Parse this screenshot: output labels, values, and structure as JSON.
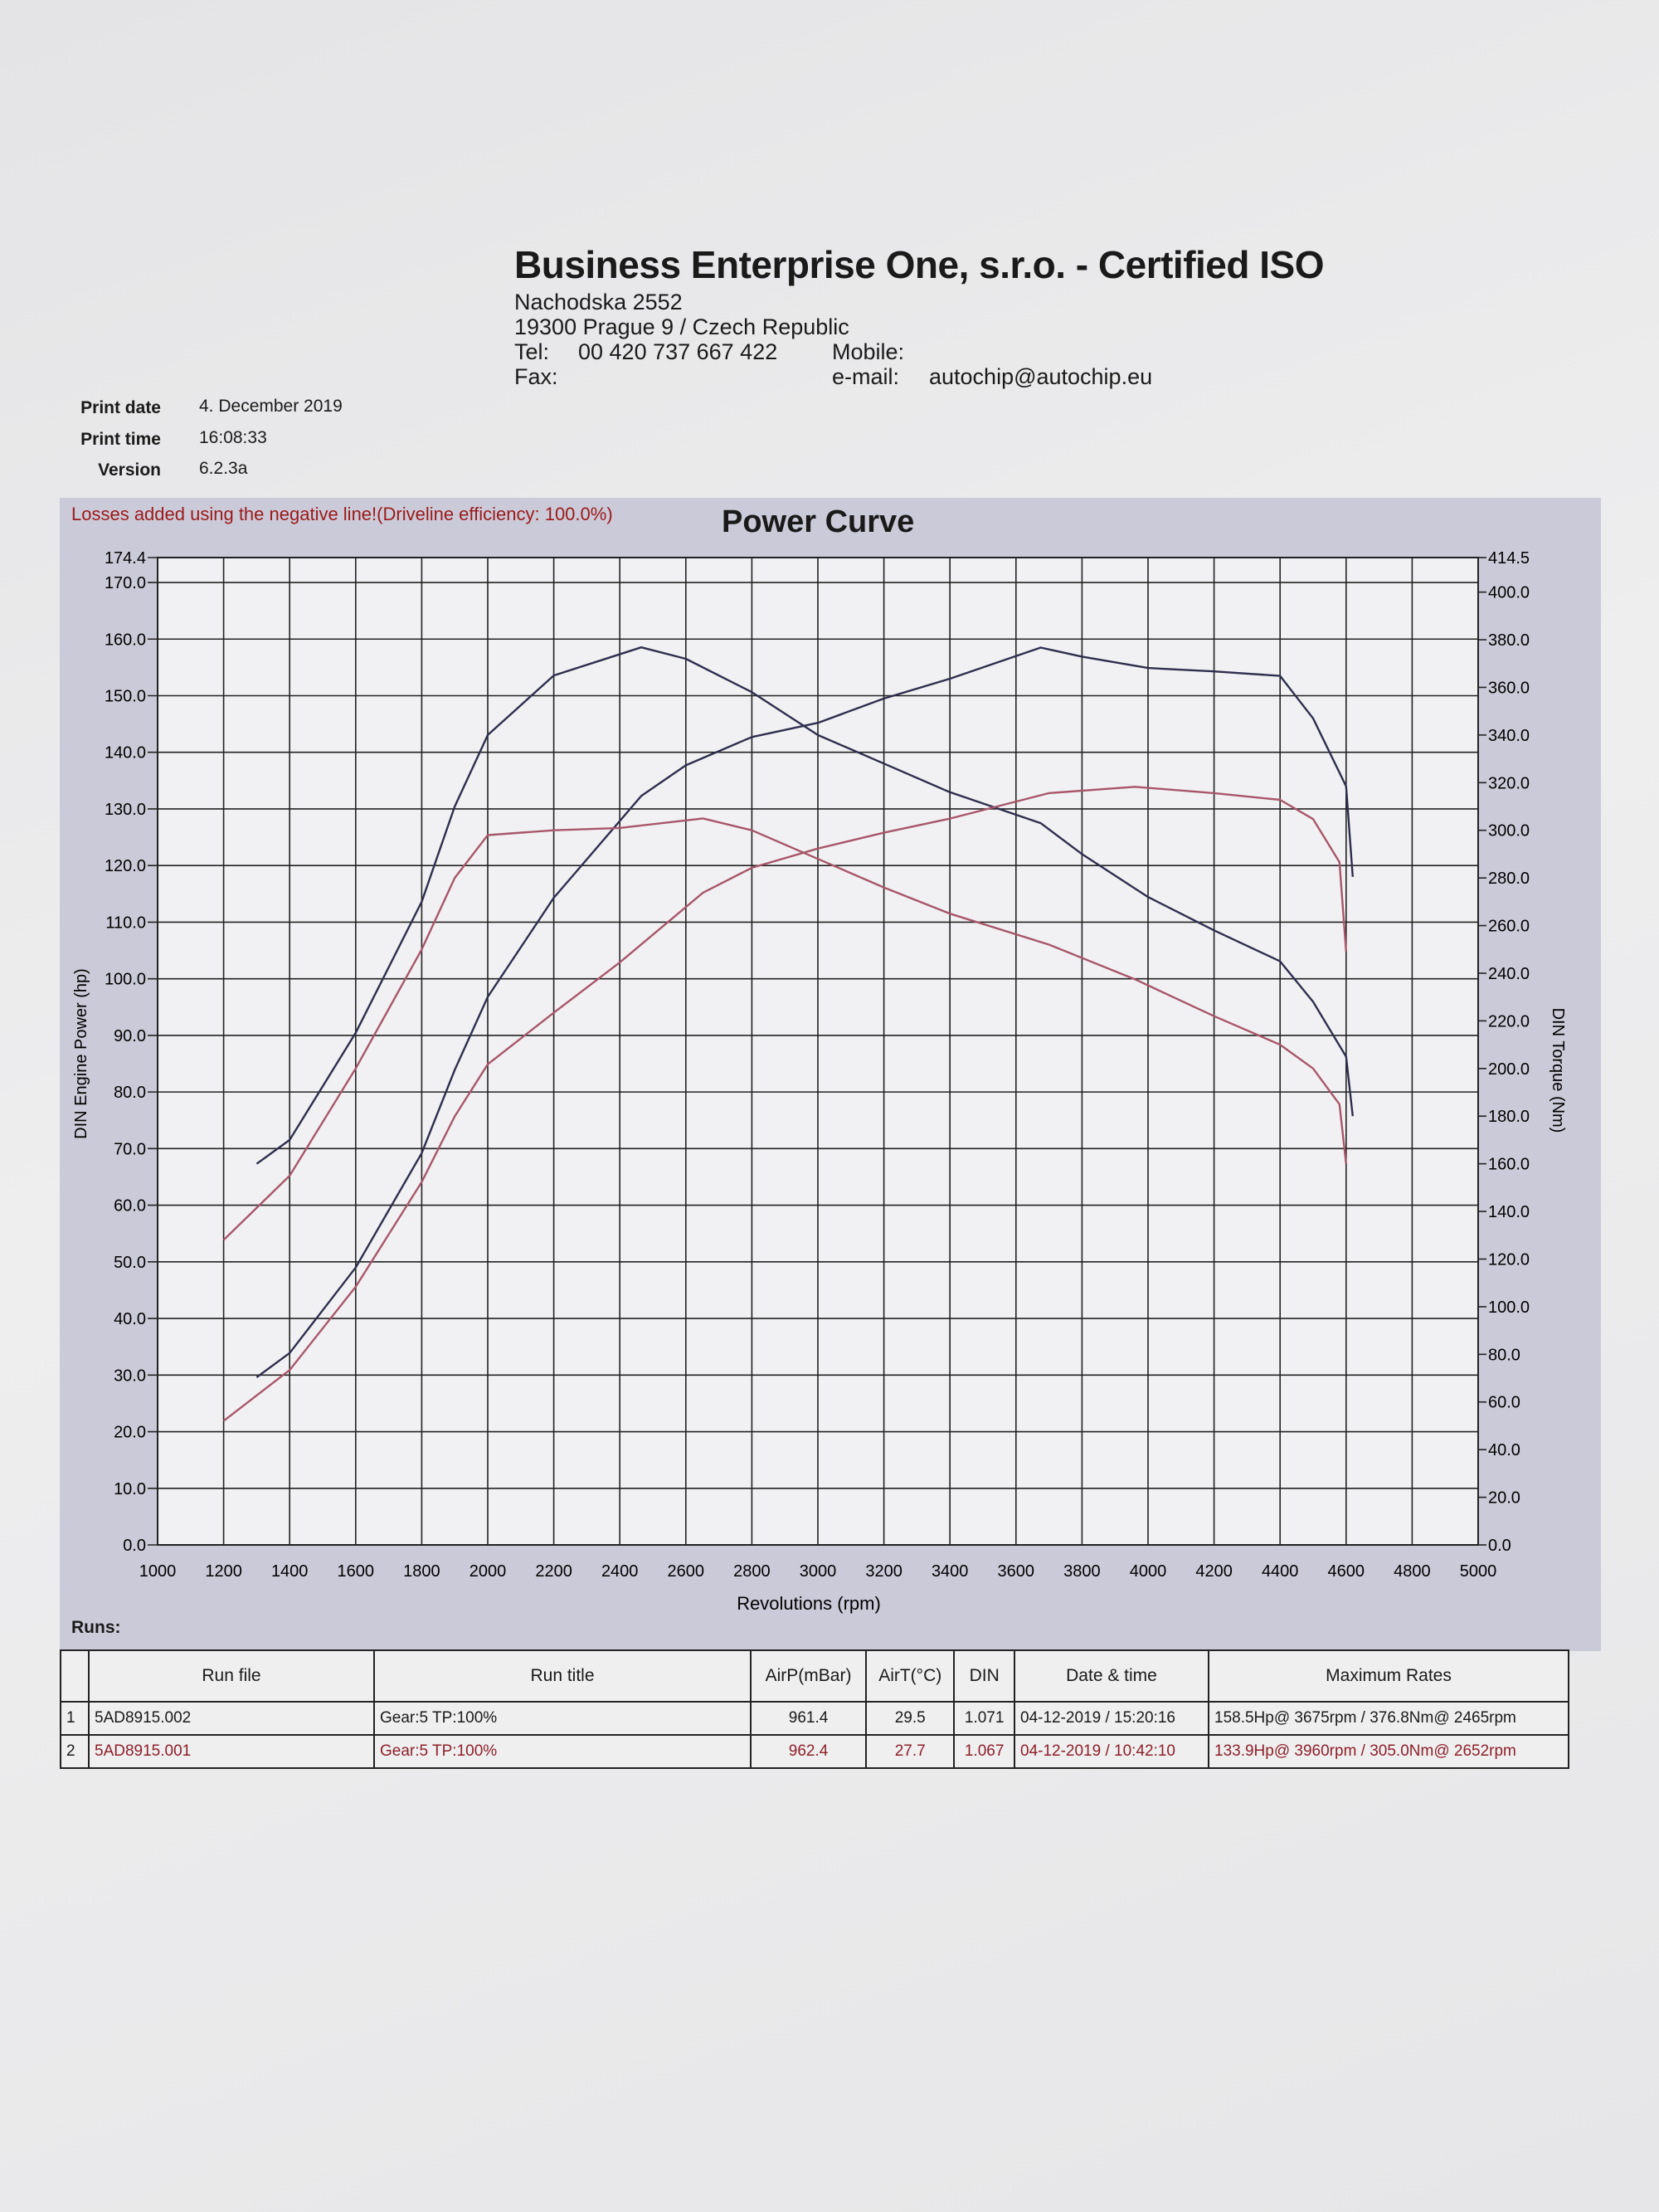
{
  "header": {
    "company": "Business Enterprise One, s.r.o. - Certified ISO",
    "street": "Nachodska 2552",
    "city": "19300 Prague 9 / Czech Republic",
    "tel_label": "Tel:",
    "tel": "00 420 737 667 422",
    "fax_label": "Fax:",
    "mobile_label": "Mobile:",
    "email_label": "e-mail:",
    "email": "autochip@autochip.eu"
  },
  "meta": {
    "print_date_label": "Print date",
    "print_date": "4. December 2019",
    "print_time_label": "Print time",
    "print_time": "16:08:33",
    "version_label": "Version",
    "version": "6.2.3a"
  },
  "losses_note": "Losses added using the negative line!(Driveline efficiency: 100.0%)",
  "chart_data": {
    "type": "line",
    "title": "Power Curve",
    "xlabel": "Revolutions (rpm)",
    "ylabel": "DIN Engine Power (hp)",
    "y2label": "DIN Torque (Nm)",
    "xlim": [
      1000,
      5000
    ],
    "ylim": [
      0,
      174.4
    ],
    "y2lim": [
      0,
      414.5
    ],
    "grid": true,
    "x_ticks": [
      "1000",
      "1200",
      "1400",
      "1600",
      "1800",
      "2000",
      "2200",
      "2400",
      "2600",
      "2800",
      "3000",
      "3200",
      "3400",
      "3600",
      "3800",
      "4000",
      "4200",
      "4400",
      "4600",
      "4800",
      "5000"
    ],
    "y_ticks": [
      "0.0",
      "10.0",
      "20.0",
      "30.0",
      "40.0",
      "50.0",
      "60.0",
      "70.0",
      "80.0",
      "90.0",
      "100.0",
      "110.0",
      "120.0",
      "130.0",
      "140.0",
      "150.0",
      "160.0",
      "170.0",
      "174.4"
    ],
    "y2_ticks": [
      "0.0",
      "20.0",
      "40.0",
      "60.0",
      "80.0",
      "100.0",
      "120.0",
      "140.0",
      "160.0",
      "180.0",
      "200.0",
      "220.0",
      "240.0",
      "260.0",
      "280.0",
      "300.0",
      "320.0",
      "340.0",
      "360.0",
      "380.0",
      "400.0",
      "414.5"
    ],
    "series": [
      {
        "name": "Run 1 power",
        "axis": "left",
        "color": "#2e2e4e",
        "x": [
          1300,
          1400,
          1600,
          1800,
          1900,
          2000,
          2200,
          2465,
          2600,
          2800,
          3000,
          3200,
          3400,
          3675,
          3800,
          4000,
          4200,
          4400,
          4500,
          4600,
          4620
        ],
        "y": [
          29.6,
          33.9,
          49.0,
          69.2,
          83.9,
          96.8,
          114.3,
          132.3,
          137.7,
          142.7,
          145.2,
          149.5,
          153.0,
          158.5,
          156.9,
          154.9,
          154.3,
          153.5,
          146.0,
          134.0,
          118.0
        ]
      },
      {
        "name": "Run 1 torque",
        "axis": "right",
        "color": "#2e2e4e",
        "x": [
          1300,
          1400,
          1600,
          1800,
          1900,
          2000,
          2200,
          2465,
          2600,
          2800,
          3000,
          3200,
          3400,
          3675,
          3800,
          4000,
          4200,
          4400,
          4500,
          4600,
          4620
        ],
        "y": [
          160,
          170,
          215,
          270,
          310,
          340,
          365,
          376.8,
          372,
          358,
          340,
          328,
          316,
          303,
          290,
          272,
          258,
          245,
          228,
          205,
          180
        ]
      },
      {
        "name": "Run 2 power",
        "axis": "left",
        "color": "#a8566a",
        "x": [
          1200,
          1400,
          1600,
          1800,
          1900,
          2000,
          2200,
          2400,
          2652,
          2800,
          3000,
          3200,
          3400,
          3700,
          3960,
          4200,
          4400,
          4500,
          4580,
          4600
        ],
        "y": [
          21.9,
          30.9,
          45.6,
          64.1,
          75.7,
          84.9,
          94.0,
          102.9,
          115.2,
          119.6,
          123.0,
          125.8,
          128.3,
          132.8,
          133.9,
          132.8,
          131.6,
          128.2,
          120.6,
          104.8
        ]
      },
      {
        "name": "Run 2 torque",
        "axis": "right",
        "color": "#a8566a",
        "x": [
          1200,
          1400,
          1600,
          1800,
          1900,
          2000,
          2200,
          2400,
          2652,
          2800,
          3000,
          3200,
          3400,
          3700,
          3960,
          4200,
          4400,
          4500,
          4580,
          4600
        ],
        "y": [
          128,
          155,
          200,
          250,
          280,
          298,
          300,
          301,
          305,
          300,
          288,
          276,
          265,
          252,
          237.5,
          222,
          210,
          200,
          185,
          160
        ]
      }
    ]
  },
  "runs": {
    "label": "Runs:",
    "columns": [
      "",
      "Run file",
      "Run title",
      "AirP(mBar)",
      "AirT(°C)",
      "DIN",
      "Date & time",
      "Maximum Rates"
    ],
    "rows": [
      [
        "1",
        "5AD8915.002",
        "Gear:5 TP:100%",
        "961.4",
        "29.5",
        "1.071",
        "04-12-2019 / 15:20:16",
        "158.5Hp@ 3675rpm / 376.8Nm@ 2465rpm"
      ],
      [
        "2",
        "5AD8915.001",
        "Gear:5 TP:100%",
        "962.4",
        "27.7",
        "1.067",
        "04-12-2019 / 10:42:10",
        "133.9Hp@ 3960rpm / 305.0Nm@ 2652rpm"
      ]
    ]
  }
}
